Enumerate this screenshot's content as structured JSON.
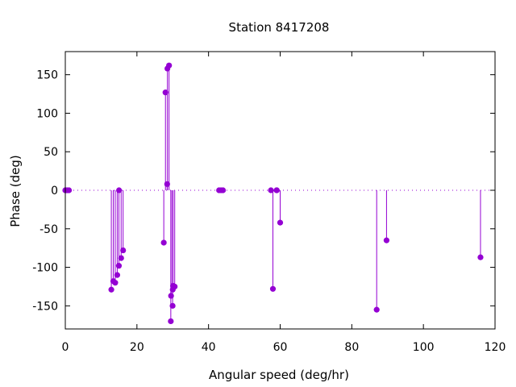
{
  "chart_data": {
    "type": "scatter",
    "subtype": "impulses-with-points",
    "title": "Station 8417208",
    "xlabel": "Angular speed (deg/hr)",
    "ylabel": "Phase (deg)",
    "xlim": [
      0,
      120
    ],
    "ylim": [
      -180,
      180
    ],
    "xticks": [
      0,
      20,
      40,
      60,
      80,
      100,
      120
    ],
    "yticks": [
      -150,
      -100,
      -50,
      0,
      50,
      100,
      150
    ],
    "grid": false,
    "zero_line": "dotted",
    "color": "#9400d3",
    "series": [
      {
        "x": [
          0.0,
          0.04,
          0.08,
          0.54,
          1.02,
          12.85,
          13.4,
          13.94,
          14.5,
          14.96,
          15.0,
          15.59,
          16.14,
          27.5,
          27.97,
          28.44,
          28.51,
          28.97,
          29.46,
          29.53,
          29.96,
          30.0,
          30.08,
          30.55,
          42.93,
          43.48,
          44.03,
          57.42,
          57.97,
          58.98,
          59.07,
          60.0,
          86.95,
          89.7,
          115.94
        ],
        "y": [
          0,
          0,
          0,
          0,
          0,
          -129,
          -118,
          -120,
          -110,
          -98,
          0,
          -88,
          -78,
          -68,
          127,
          8,
          158,
          162,
          -170,
          -137,
          -150,
          -129,
          -124,
          -125,
          0,
          0,
          0,
          0,
          -128,
          0,
          0,
          -42,
          -155,
          -65,
          -87
        ]
      }
    ]
  }
}
